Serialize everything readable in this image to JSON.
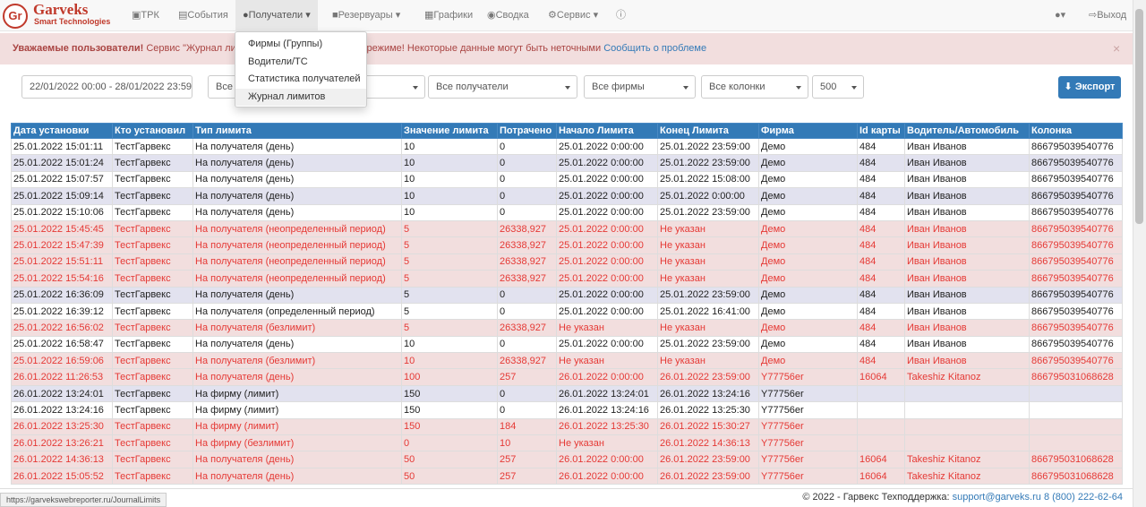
{
  "header": {
    "logo": "Gr",
    "brand": "Garveks",
    "tagline": "Smart Technologies",
    "nav": [
      "ТРК",
      "События",
      "Получатели",
      "Резервуары",
      "Графики",
      "Сводка",
      "Сервис"
    ],
    "logout": "Выход"
  },
  "dropdown": [
    "Фирмы (Группы)",
    "Водители/ТС",
    "Статистика получателей",
    "Журнал лимитов"
  ],
  "alert": {
    "title": "Уважаемые пользователи!",
    "text": "Сервис \"Журнал лимитов\" работает в тестовом режиме! Некоторые данные могут быть неточными",
    "link": "Сообщить о проблеме"
  },
  "filters": {
    "date_range": "22/01/2022 00:00 - 28/01/2022 23:59",
    "selects": [
      "Все",
      "Все получатели",
      "Все фирмы",
      "Все колонки",
      "500"
    ],
    "export": "Экспорт"
  },
  "table": {
    "columns": [
      "Дата установки",
      "Кто установил",
      "Тип лимита",
      "Значение лимита",
      "Потрачено",
      "Начало Лимита",
      "Конец Лимита",
      "Фирма",
      "Id карты",
      "Водитель/Автомобиль",
      "Колонка"
    ],
    "rows": [
      {
        "alert": false,
        "cells": [
          "25.01.2022 15:01:11",
          "ТестГарвекс",
          "На получателя (день)",
          "10",
          "0",
          "25.01.2022 0:00:00",
          "25.01.2022 23:59:00",
          "Демо",
          "484",
          "Иван Иванов",
          "866795039540776"
        ]
      },
      {
        "alert": false,
        "cells": [
          "25.01.2022 15:01:24",
          "ТестГарвекс",
          "На получателя (день)",
          "10",
          "0",
          "25.01.2022 0:00:00",
          "25.01.2022 23:59:00",
          "Демо",
          "484",
          "Иван Иванов",
          "866795039540776"
        ]
      },
      {
        "alert": false,
        "cells": [
          "25.01.2022 15:07:57",
          "ТестГарвекс",
          "На получателя (день)",
          "10",
          "0",
          "25.01.2022 0:00:00",
          "25.01.2022 15:08:00",
          "Демо",
          "484",
          "Иван Иванов",
          "866795039540776"
        ]
      },
      {
        "alert": false,
        "cells": [
          "25.01.2022 15:09:14",
          "ТестГарвекс",
          "На получателя (день)",
          "10",
          "0",
          "25.01.2022 0:00:00",
          "25.01.2022 0:00:00",
          "Демо",
          "484",
          "Иван Иванов",
          "866795039540776"
        ]
      },
      {
        "alert": false,
        "cells": [
          "25.01.2022 15:10:06",
          "ТестГарвекс",
          "На получателя (день)",
          "10",
          "0",
          "25.01.2022 0:00:00",
          "25.01.2022 23:59:00",
          "Демо",
          "484",
          "Иван Иванов",
          "866795039540776"
        ]
      },
      {
        "alert": true,
        "cells": [
          "25.01.2022 15:45:45",
          "ТестГарвекс",
          "На получателя (неопределенный период)",
          "5",
          "26338,927",
          "25.01.2022 0:00:00",
          "Не указан",
          "Демо",
          "484",
          "Иван Иванов",
          "866795039540776"
        ]
      },
      {
        "alert": true,
        "cells": [
          "25.01.2022 15:47:39",
          "ТестГарвекс",
          "На получателя (неопределенный период)",
          "5",
          "26338,927",
          "25.01.2022 0:00:00",
          "Не указан",
          "Демо",
          "484",
          "Иван Иванов",
          "866795039540776"
        ]
      },
      {
        "alert": true,
        "cells": [
          "25.01.2022 15:51:11",
          "ТестГарвекс",
          "На получателя (неопределенный период)",
          "5",
          "26338,927",
          "25.01.2022 0:00:00",
          "Не указан",
          "Демо",
          "484",
          "Иван Иванов",
          "866795039540776"
        ]
      },
      {
        "alert": true,
        "cells": [
          "25.01.2022 15:54:16",
          "ТестГарвекс",
          "На получателя (неопределенный период)",
          "5",
          "26338,927",
          "25.01.2022 0:00:00",
          "Не указан",
          "Демо",
          "484",
          "Иван Иванов",
          "866795039540776"
        ]
      },
      {
        "alert": false,
        "cells": [
          "25.01.2022 16:36:09",
          "ТестГарвекс",
          "На получателя (день)",
          "5",
          "0",
          "25.01.2022 0:00:00",
          "25.01.2022 23:59:00",
          "Демо",
          "484",
          "Иван Иванов",
          "866795039540776"
        ]
      },
      {
        "alert": false,
        "cells": [
          "25.01.2022 16:39:12",
          "ТестГарвекс",
          "На получателя (определенный период)",
          "5",
          "0",
          "25.01.2022 0:00:00",
          "25.01.2022 16:41:00",
          "Демо",
          "484",
          "Иван Иванов",
          "866795039540776"
        ]
      },
      {
        "alert": true,
        "cells": [
          "25.01.2022 16:56:02",
          "ТестГарвекс",
          "На получателя (безлимит)",
          "5",
          "26338,927",
          "Не указан",
          "Не указан",
          "Демо",
          "484",
          "Иван Иванов",
          "866795039540776"
        ]
      },
      {
        "alert": false,
        "cells": [
          "25.01.2022 16:58:47",
          "ТестГарвекс",
          "На получателя (день)",
          "10",
          "0",
          "25.01.2022 0:00:00",
          "25.01.2022 23:59:00",
          "Демо",
          "484",
          "Иван Иванов",
          "866795039540776"
        ]
      },
      {
        "alert": true,
        "cells": [
          "25.01.2022 16:59:06",
          "ТестГарвекс",
          "На получателя (безлимит)",
          "10",
          "26338,927",
          "Не указан",
          "Не указан",
          "Демо",
          "484",
          "Иван Иванов",
          "866795039540776"
        ]
      },
      {
        "alert": true,
        "cells": [
          "26.01.2022 11:26:53",
          "ТестГарвекс",
          "На получателя (день)",
          "100",
          "257",
          "26.01.2022 0:00:00",
          "26.01.2022 23:59:00",
          "Y77756er",
          "16064",
          "Takeshiz Kitanoz",
          "866795031068628"
        ]
      },
      {
        "alert": false,
        "cells": [
          "26.01.2022 13:24:01",
          "ТестГарвекс",
          "На фирму (лимит)",
          "150",
          "0",
          "26.01.2022 13:24:01",
          "26.01.2022 13:24:16",
          "Y77756er",
          null,
          null,
          null
        ]
      },
      {
        "alert": false,
        "cells": [
          "26.01.2022 13:24:16",
          "ТестГарвекс",
          "На фирму (лимит)",
          "150",
          "0",
          "26.01.2022 13:24:16",
          "26.01.2022 13:25:30",
          "Y77756er",
          null,
          null,
          null
        ]
      },
      {
        "alert": true,
        "cells": [
          "26.01.2022 13:25:30",
          "ТестГарвекс",
          "На фирму (лимит)",
          "150",
          "184",
          "26.01.2022 13:25:30",
          "26.01.2022 15:30:27",
          "Y77756er",
          null,
          null,
          null
        ]
      },
      {
        "alert": true,
        "cells": [
          "26.01.2022 13:26:21",
          "ТестГарвекс",
          "На фирму (безлимит)",
          "0",
          "10",
          "Не указан",
          "26.01.2022 14:36:13",
          "Y77756er",
          null,
          null,
          null
        ]
      },
      {
        "alert": true,
        "cells": [
          "26.01.2022 14:36:13",
          "ТестГарвекс",
          "На получателя (день)",
          "50",
          "257",
          "26.01.2022 0:00:00",
          "26.01.2022 23:59:00",
          "Y77756er",
          "16064",
          "Takeshiz Kitanoz",
          "866795031068628"
        ]
      },
      {
        "alert": true,
        "cells": [
          "26.01.2022 15:05:52",
          "ТестГарвекс",
          "На получателя (день)",
          "50",
          "257",
          "26.01.2022 0:00:00",
          "26.01.2022 23:59:00",
          "Y77756er",
          "16064",
          "Takeshiz Kitanoz",
          "866795031068628"
        ]
      }
    ]
  },
  "footer": {
    "copyright": "© 2022 - Гарвекс Техподдержка:",
    "email": "support@garveks.ru",
    "phone": "8 (800) 222-62-64"
  },
  "status_url": "https://garvekswebreporter.ru/JournalLimits"
}
